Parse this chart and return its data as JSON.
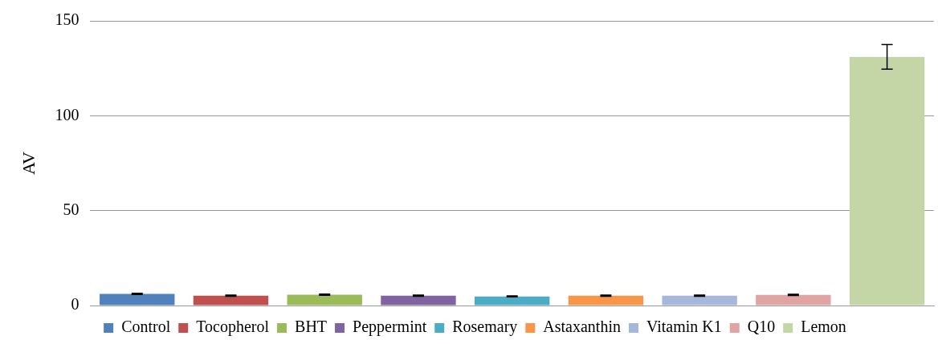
{
  "chart_data": {
    "type": "bar",
    "ylabel": "AV",
    "categories": [
      null,
      null,
      null,
      null,
      null,
      null,
      null,
      null,
      null
    ],
    "ylim": [
      0,
      150
    ],
    "yticks": [
      0,
      50,
      100,
      150
    ],
    "grid": "y",
    "legend": "bottom",
    "series": [
      {
        "name": "Control",
        "color": "#4f81bd",
        "values": [
          6.1,
          null,
          null,
          null,
          null,
          null,
          null,
          null,
          null
        ],
        "errors": [
          0.3,
          null,
          null,
          null,
          null,
          null,
          null,
          null,
          null
        ]
      },
      {
        "name": "Tocopherol",
        "color": "#c0504d",
        "values": [
          null,
          5.2,
          null,
          null,
          null,
          null,
          null,
          null,
          null
        ],
        "errors": [
          null,
          0.3,
          null,
          null,
          null,
          null,
          null,
          null,
          null
        ]
      },
      {
        "name": "BHT",
        "color": "#9bbb59",
        "values": [
          null,
          null,
          5.7,
          null,
          null,
          null,
          null,
          null,
          null
        ],
        "errors": [
          null,
          null,
          0.3,
          null,
          null,
          null,
          null,
          null,
          null
        ]
      },
      {
        "name": "Peppermint",
        "color": "#8064a2",
        "values": [
          null,
          null,
          null,
          5.2,
          null,
          null,
          null,
          null,
          null
        ],
        "errors": [
          null,
          null,
          null,
          0.3,
          null,
          null,
          null,
          null,
          null
        ]
      },
      {
        "name": "Rosemary",
        "color": "#4bacc6",
        "values": [
          null,
          null,
          null,
          null,
          4.8,
          null,
          null,
          null,
          null
        ],
        "errors": [
          null,
          null,
          null,
          null,
          0.3,
          null,
          null,
          null,
          null
        ]
      },
      {
        "name": "Astaxanthin",
        "color": "#f79646",
        "values": [
          null,
          null,
          null,
          null,
          null,
          5.2,
          null,
          null,
          null
        ],
        "errors": [
          null,
          null,
          null,
          null,
          null,
          0.3,
          null,
          null,
          null
        ]
      },
      {
        "name": "Vitamin K1",
        "color": "#a5b8dc",
        "values": [
          null,
          null,
          null,
          null,
          null,
          null,
          5.2,
          null,
          null
        ],
        "errors": [
          null,
          null,
          null,
          null,
          null,
          null,
          0.3,
          null,
          null
        ]
      },
      {
        "name": "Q10",
        "color": "#e0a5a3",
        "values": [
          null,
          null,
          null,
          null,
          null,
          null,
          null,
          5.6,
          null
        ],
        "errors": [
          null,
          null,
          null,
          null,
          null,
          null,
          null,
          0.3,
          null
        ]
      },
      {
        "name": "Lemon",
        "color": "#c4d6a6",
        "values": [
          null,
          null,
          null,
          null,
          null,
          null,
          null,
          null,
          131
        ],
        "errors": [
          null,
          null,
          null,
          null,
          null,
          null,
          null,
          null,
          6.5
        ]
      }
    ]
  }
}
